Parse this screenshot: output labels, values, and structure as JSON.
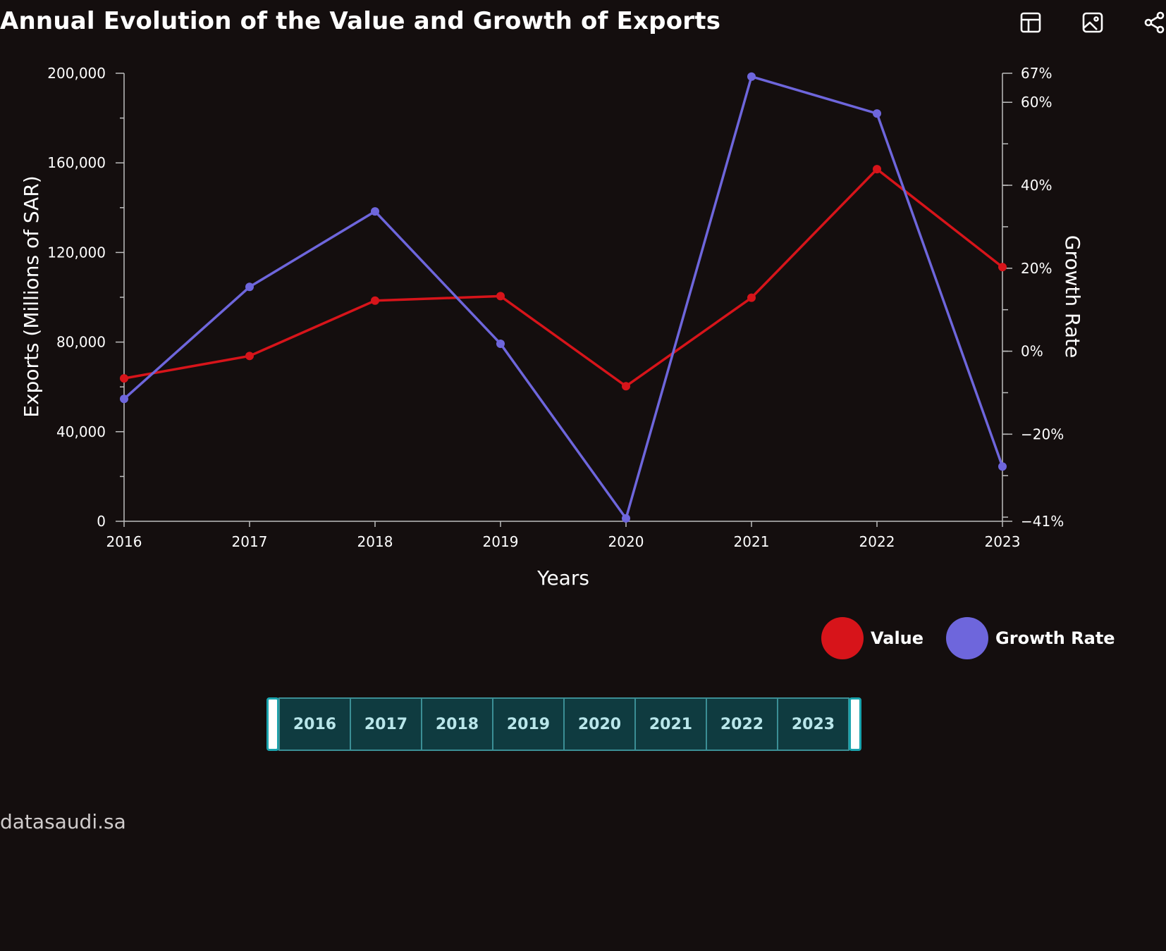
{
  "header": {
    "title": "Annual Evolution of the Value and Growth of Exports"
  },
  "toolbar": {
    "icons": [
      "table-icon",
      "image-icon",
      "share-icon"
    ]
  },
  "colors": {
    "background": "#140e0e",
    "value": "#d7141a",
    "growth": "#6e66dc",
    "axis": "#bdbdbd"
  },
  "chart_data": {
    "type": "line",
    "title": "Annual Evolution of the Value and Growth of Exports",
    "xlabel": "Years",
    "ylabel": "Exports (Millions of SAR)",
    "y2label": "Growth Rate",
    "categories": [
      "2016",
      "2017",
      "2018",
      "2019",
      "2020",
      "2021",
      "2022",
      "2023"
    ],
    "ylim": [
      0,
      200000
    ],
    "yticks": [
      "0",
      "40,000",
      "80,000",
      "120,000",
      "160,000",
      "200,000"
    ],
    "y2lim": [
      -41,
      67
    ],
    "y2ticks": [
      "−41%",
      "−20%",
      "0%",
      "20%",
      "40%",
      "60%",
      "67%"
    ],
    "series": [
      {
        "name": "Value",
        "axis": "left",
        "color": "#d7141a",
        "values": [
          63800,
          73800,
          98500,
          100500,
          60300,
          99800,
          157200,
          113500
        ]
      },
      {
        "name": "Growth Rate",
        "axis": "right",
        "color": "#6e66dc",
        "values": [
          -11.5,
          15.5,
          33.7,
          1.8,
          -40.3,
          66.2,
          57.3,
          -27.8
        ]
      }
    ],
    "legend_position": "bottom-right",
    "grid": false
  },
  "legend": {
    "items": [
      {
        "label": "Value",
        "color": "#d7141a"
      },
      {
        "label": "Growth Rate",
        "color": "#6e66dc"
      }
    ]
  },
  "slider": {
    "years": [
      "2016",
      "2017",
      "2018",
      "2019",
      "2020",
      "2021",
      "2022",
      "2023"
    ]
  },
  "footer": {
    "source": "datasaudi.sa"
  }
}
